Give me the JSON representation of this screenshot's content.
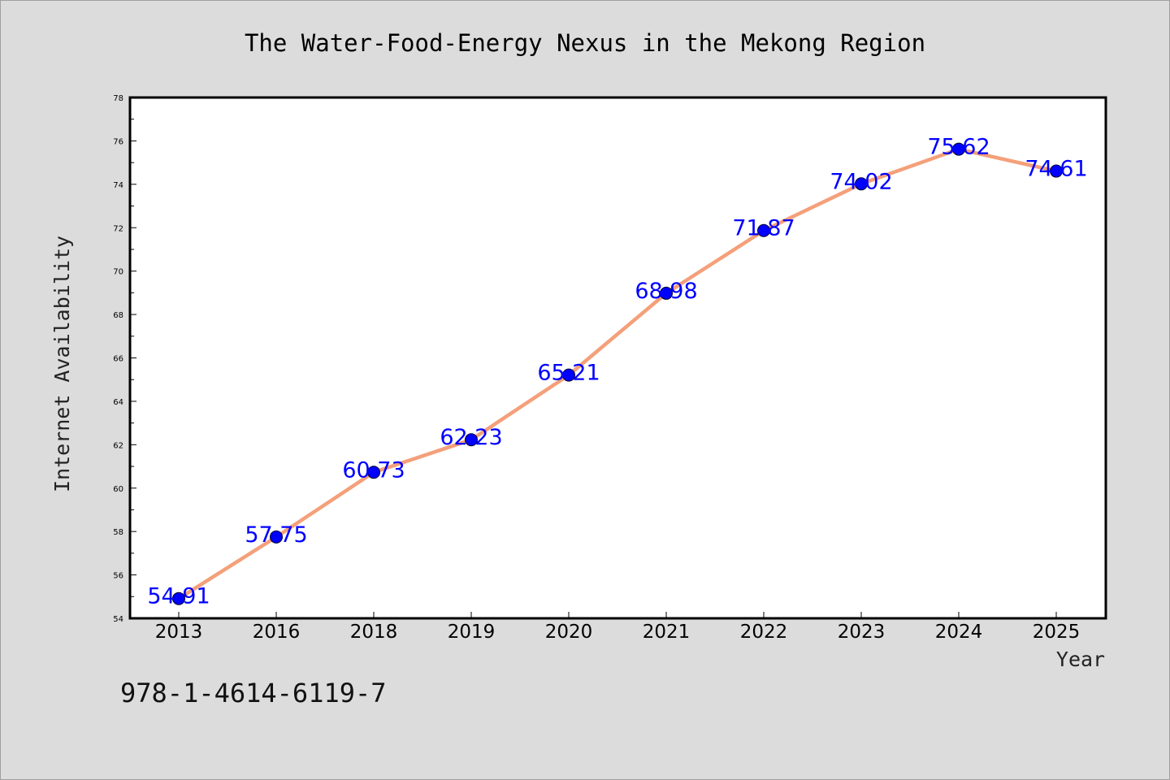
{
  "chart_data": {
    "type": "line",
    "title": "The Water-Food-Energy Nexus in the Mekong Region",
    "xlabel": "Year",
    "ylabel": "Internet Availability",
    "categories": [
      "2013",
      "2016",
      "2018",
      "2019",
      "2020",
      "2021",
      "2022",
      "2023",
      "2024",
      "2025"
    ],
    "series": [
      {
        "values": [
          54.91,
          57.75,
          60.73,
          62.23,
          65.21,
          68.98,
          71.87,
          74.02,
          75.62,
          74.61
        ],
        "labels": [
          "54.91",
          "57.75",
          "60.73",
          "62.23",
          "65.21",
          "68.98",
          "71.87",
          "74.02",
          "75.62",
          "74.61"
        ],
        "color": "#f4a07a",
        "marker_color": "#0000ff"
      }
    ],
    "ylim": [
      54,
      78
    ],
    "yticks": [
      "54",
      "56",
      "58",
      "60",
      "62",
      "64",
      "66",
      "68",
      "70",
      "72",
      "74",
      "76",
      "78"
    ],
    "grid": false
  },
  "footer": {
    "isbn": "978-1-4614-6119-7"
  }
}
